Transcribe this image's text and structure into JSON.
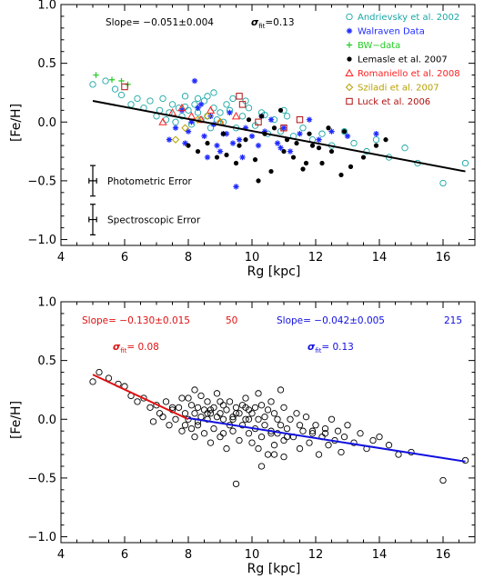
{
  "chart_data": [
    {
      "type": "scatter",
      "xlabel": "Rg [kpc]",
      "ylabel": "[Fe/H]",
      "xlim": [
        4,
        17
      ],
      "ylim": [
        -1.05,
        1.0
      ],
      "xticks": [
        4,
        6,
        8,
        10,
        12,
        14,
        16
      ],
      "yticks": [
        -1.0,
        -0.5,
        0.0,
        0.5,
        1.0
      ],
      "xtick_labels": [
        "4",
        "6",
        "8",
        "10",
        "12",
        "14",
        "16"
      ],
      "ytick_labels": [
        "−1.0",
        "−0.5",
        "0.0",
        "0.5",
        "1.0"
      ],
      "slope_text": "Slope= −0.051±0.004",
      "sigma_symbol": "σ",
      "sigma_sub": "fit",
      "sigma_value": "=0.13",
      "fit": {
        "x": [
          5.0,
          16.7
        ],
        "y": [
          0.18,
          -0.42
        ],
        "color": "#000000"
      },
      "legend": [
        {
          "label": "Andrievsky et al. 2002",
          "color": "#1aa6a6",
          "marker": "circle"
        },
        {
          "label": "Walraven Data",
          "color": "#1f2bff",
          "marker": "star"
        },
        {
          "label": "BW−data",
          "color": "#22cc22",
          "marker": "plus"
        },
        {
          "label": "Lemasle et al. 2007",
          "color": "#000000",
          "marker": "dot"
        },
        {
          "label": "Romaniello et al. 2008",
          "color": "#ff2020",
          "marker": "triangle"
        },
        {
          "label": "Sziladi et al. 2007",
          "color": "#b8a000",
          "marker": "diamond"
        },
        {
          "label": "Luck et al. 2006",
          "color": "#b01010",
          "marker": "square"
        }
      ],
      "errorbars": [
        {
          "label": "Photometric Error",
          "x": 5.0,
          "y": -0.5,
          "dx": 0.12,
          "dy": 0.13
        },
        {
          "label": "Spectroscopic Error",
          "x": 5.0,
          "y": -0.83,
          "dx": 0.12,
          "dy": 0.13
        }
      ],
      "series": [
        {
          "name": "Andrievsky et al. 2002",
          "x": [
            5.0,
            5.4,
            5.7,
            5.9,
            6.2,
            6.4,
            6.6,
            6.8,
            7.0,
            7.1,
            7.2,
            7.3,
            7.4,
            7.5,
            7.6,
            7.7,
            7.8,
            7.9,
            8.0,
            8.1,
            8.2,
            8.3,
            8.4,
            8.5,
            8.6,
            8.7,
            8.8,
            8.9,
            9.0,
            9.1,
            9.3,
            9.5,
            9.7,
            9.9,
            10.1,
            10.3,
            10.5,
            10.7,
            10.9,
            11.1,
            11.3,
            11.6,
            11.9,
            12.2,
            12.5,
            12.9,
            13.2,
            13.6,
            13.9,
            14.3,
            14.8,
            15.2,
            16.0,
            16.7,
            8.3,
            8.6,
            9.2,
            9.8,
            10.4,
            11.0,
            7.9,
            8.8,
            9.4
          ],
          "y": [
            0.32,
            0.35,
            0.28,
            0.23,
            0.15,
            0.2,
            0.12,
            0.18,
            0.05,
            0.1,
            0.2,
            0.02,
            0.08,
            0.15,
            0.0,
            0.12,
            0.05,
            0.22,
            0.1,
            -0.02,
            0.15,
            0.08,
            0.02,
            0.18,
            0.05,
            -0.05,
            0.12,
            0.02,
            0.08,
            0.0,
            0.1,
            -0.05,
            0.05,
            0.12,
            -0.03,
            0.08,
            -0.1,
            0.02,
            -0.08,
            0.05,
            -0.12,
            -0.05,
            -0.15,
            -0.1,
            -0.2,
            -0.08,
            -0.18,
            -0.25,
            -0.15,
            -0.3,
            -0.22,
            -0.35,
            -0.52,
            -0.35,
            0.2,
            0.22,
            0.15,
            0.18,
            0.06,
            0.1,
            0.13,
            0.25,
            0.2
          ]
        },
        {
          "name": "Walraven Data",
          "x": [
            7.4,
            7.6,
            7.8,
            8.0,
            8.1,
            8.3,
            8.5,
            8.7,
            8.9,
            9.1,
            9.3,
            9.5,
            9.6,
            9.8,
            10.0,
            10.2,
            10.4,
            10.6,
            10.8,
            11.0,
            11.2,
            11.5,
            11.8,
            12.1,
            12.5,
            13.0,
            13.9,
            8.2,
            8.4,
            8.8,
            9.0,
            9.4,
            9.7,
            10.3,
            10.9,
            7.9,
            8.6,
            9.2
          ],
          "y": [
            -0.15,
            -0.05,
            0.1,
            -0.08,
            0.0,
            0.12,
            -0.12,
            0.05,
            -0.2,
            -0.1,
            0.08,
            -0.55,
            -0.15,
            -0.05,
            -0.12,
            -0.2,
            -0.08,
            0.02,
            -0.18,
            -0.05,
            -0.25,
            -0.1,
            0.02,
            -0.15,
            -0.08,
            -0.12,
            -0.1,
            0.35,
            0.15,
            -0.02,
            -0.25,
            -0.18,
            -0.3,
            0.05,
            -0.22,
            -0.18,
            -0.3,
            -0.1
          ]
        },
        {
          "name": "BW−data",
          "x": [
            5.1,
            5.6,
            5.9,
            6.1
          ],
          "y": [
            0.4,
            0.36,
            0.35,
            0.32
          ]
        },
        {
          "name": "Lemasle et al. 2007",
          "x": [
            8.0,
            8.3,
            8.6,
            8.9,
            9.2,
            9.5,
            9.8,
            10.1,
            10.4,
            10.7,
            11.0,
            11.3,
            11.6,
            11.9,
            12.2,
            12.5,
            12.8,
            13.1,
            13.5,
            13.9,
            14.2,
            10.2,
            10.6,
            11.1,
            11.8,
            12.4,
            9.1,
            9.9,
            10.9,
            11.4,
            12.1,
            12.9,
            9.6,
            10.3,
            11.7
          ],
          "y": [
            -0.2,
            -0.25,
            -0.18,
            -0.3,
            -0.28,
            -0.35,
            -0.15,
            -0.32,
            -0.1,
            -0.05,
            -0.25,
            -0.3,
            -0.4,
            -0.2,
            -0.35,
            -0.25,
            -0.45,
            -0.38,
            -0.3,
            -0.2,
            -0.15,
            -0.5,
            -0.42,
            -0.15,
            -0.1,
            -0.05,
            -0.1,
            0.02,
            0.1,
            -0.18,
            -0.22,
            -0.08,
            -0.2,
            0.05,
            -0.35
          ]
        },
        {
          "name": "Romaniello et al. 2008",
          "x": [
            7.2,
            7.5,
            7.8,
            8.1,
            8.4,
            8.7,
            9.0,
            9.5
          ],
          "y": [
            0.0,
            0.08,
            0.12,
            0.05,
            0.02,
            0.1,
            0.0,
            0.05
          ]
        },
        {
          "name": "Sziladi et al. 2007",
          "x": [
            7.6,
            7.9,
            8.3,
            8.6,
            9.0
          ],
          "y": [
            -0.15,
            -0.05,
            0.02,
            0.05,
            0.0
          ]
        },
        {
          "name": "Luck et al. 2006",
          "x": [
            6.0,
            9.6,
            9.7,
            10.2,
            11.0,
            11.5
          ],
          "y": [
            0.3,
            0.22,
            0.15,
            0.0,
            -0.05,
            0.02
          ]
        }
      ]
    },
    {
      "type": "scatter",
      "xlabel": "Rg [kpc]",
      "ylabel": "[Fe/H]",
      "xlim": [
        4,
        17
      ],
      "ylim": [
        -1.05,
        1.0
      ],
      "xticks": [
        4,
        6,
        8,
        10,
        12,
        14,
        16
      ],
      "yticks": [
        -1.0,
        -0.5,
        0.0,
        0.5,
        1.0
      ],
      "xtick_labels": [
        "4",
        "6",
        "8",
        "10",
        "12",
        "14",
        "16"
      ],
      "ytick_labels": [
        "−1.0",
        "−0.5",
        "0.0",
        "0.5",
        "1.0"
      ],
      "inner": {
        "slope": "Slope= −0.130±0.015",
        "count": "50",
        "sigma_symbol": "σ",
        "sigma_sub": "fit",
        "sigma_value": "= 0.08",
        "color": "#e01010"
      },
      "outer": {
        "slope": "Slope= −0.042±0.005",
        "count": "215",
        "sigma_symbol": "σ",
        "sigma_sub": "fit",
        "sigma_value": "= 0.13",
        "color": "#1010e0"
      },
      "fits": [
        {
          "x": [
            5.0,
            8.0
          ],
          "y": [
            0.38,
            0.0
          ],
          "color": "#e01010"
        },
        {
          "x": [
            8.0,
            16.7
          ],
          "y": [
            0.01,
            -0.36
          ],
          "color": "#1010e0"
        }
      ],
      "series": [
        {
          "name": "",
          "x": [
            5.0,
            5.2,
            5.5,
            5.8,
            6.0,
            6.2,
            6.4,
            6.6,
            6.8,
            6.9,
            7.0,
            7.1,
            7.2,
            7.3,
            7.4,
            7.5,
            7.6,
            7.7,
            7.8,
            7.9,
            8.0,
            8.0,
            8.1,
            8.1,
            8.2,
            8.2,
            8.3,
            8.3,
            8.4,
            8.4,
            8.5,
            8.5,
            8.6,
            8.6,
            8.7,
            8.7,
            8.8,
            8.8,
            8.9,
            8.9,
            9.0,
            9.0,
            9.1,
            9.1,
            9.2,
            9.2,
            9.3,
            9.3,
            9.4,
            9.4,
            9.5,
            9.5,
            9.6,
            9.6,
            9.7,
            9.7,
            9.8,
            9.8,
            9.9,
            9.9,
            10.0,
            10.0,
            10.1,
            10.1,
            10.2,
            10.2,
            10.3,
            10.3,
            10.4,
            10.4,
            10.5,
            10.5,
            10.6,
            10.6,
            10.7,
            10.7,
            10.8,
            10.8,
            10.9,
            10.9,
            11.0,
            11.0,
            11.1,
            11.2,
            11.3,
            11.4,
            11.5,
            11.6,
            11.7,
            11.8,
            11.9,
            12.0,
            12.1,
            12.2,
            12.3,
            12.4,
            12.5,
            12.6,
            12.7,
            12.8,
            12.9,
            13.0,
            13.2,
            13.4,
            13.6,
            13.8,
            14.0,
            14.3,
            14.6,
            15.0,
            16.0,
            16.7,
            7.5,
            7.8,
            8.2,
            8.6,
            9.0,
            9.4,
            9.8,
            10.2,
            10.6,
            11.0,
            7.9,
            8.3,
            8.7,
            9.1,
            9.5,
            9.9,
            10.3,
            10.7,
            11.1,
            11.5,
            11.9,
            12.3
          ],
          "y": [
            0.32,
            0.4,
            0.35,
            0.3,
            0.28,
            0.2,
            0.15,
            0.18,
            0.1,
            -0.02,
            0.12,
            0.05,
            0.02,
            0.15,
            -0.05,
            0.08,
            0.0,
            0.1,
            -0.1,
            0.05,
            0.0,
            0.18,
            -0.08,
            0.12,
            0.05,
            -0.15,
            0.1,
            -0.05,
            0.02,
            0.2,
            -0.12,
            0.08,
            0.0,
            0.15,
            -0.2,
            0.05,
            0.1,
            -0.08,
            0.02,
            0.22,
            -0.15,
            0.05,
            0.0,
            0.12,
            -0.25,
            0.08,
            -0.05,
            0.15,
            0.0,
            -0.1,
            0.1,
            -0.55,
            0.05,
            -0.18,
            0.12,
            -0.05,
            0.0,
            0.18,
            -0.12,
            0.08,
            -0.2,
            0.05,
            0.1,
            -0.08,
            0.0,
            0.22,
            -0.15,
            0.12,
            -0.05,
            0.02,
            -0.3,
            0.08,
            -0.1,
            0.15,
            -0.22,
            0.05,
            0.0,
            -0.12,
            0.25,
            -0.05,
            -0.18,
            0.1,
            -0.08,
            0.0,
            -0.15,
            0.05,
            -0.25,
            -0.1,
            0.02,
            -0.2,
            -0.12,
            -0.05,
            -0.3,
            -0.15,
            -0.08,
            -0.22,
            0.0,
            -0.18,
            -0.1,
            -0.28,
            -0.15,
            -0.05,
            -0.2,
            -0.12,
            -0.25,
            -0.18,
            -0.15,
            -0.22,
            -0.3,
            -0.28,
            -0.52,
            -0.35,
            0.1,
            0.18,
            0.25,
            0.05,
            0.15,
            0.02,
            0.1,
            -0.25,
            -0.12,
            -0.32,
            -0.05,
            -0.02,
            0.08,
            -0.12,
            0.05,
            0.0,
            -0.4,
            -0.3,
            -0.15,
            -0.05,
            -0.1,
            -0.12
          ]
        }
      ]
    }
  ]
}
